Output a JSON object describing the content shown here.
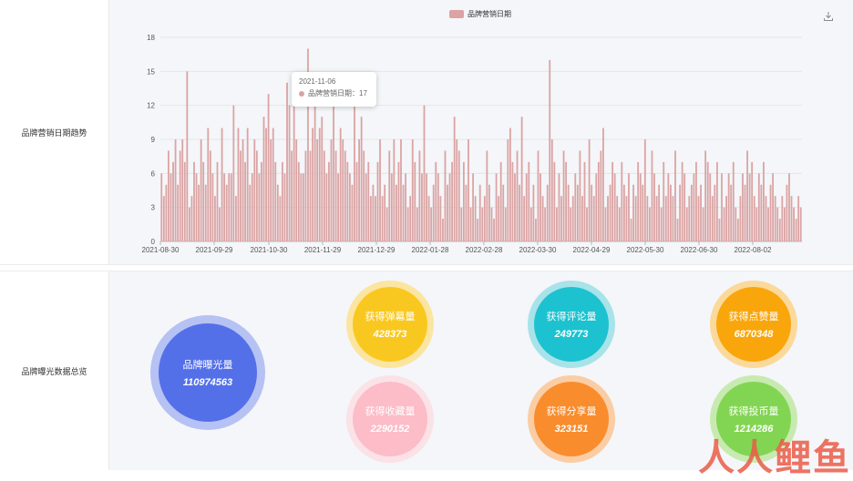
{
  "sections": {
    "trend_label": "品牌营销日期趋势",
    "overview_label": "品牌曝光数据总览"
  },
  "legend": {
    "label": "品牌营销日期",
    "color": "#dba3a3"
  },
  "toolbar": {
    "download_icon": "download-icon"
  },
  "tooltip": {
    "date": "2021-11-06",
    "series": "品牌营销日期：",
    "value": "17"
  },
  "chart_data": {
    "type": "bar",
    "series": [
      {
        "name": "品牌营销日期",
        "values": []
      }
    ],
    "x_ticks": [
      "2021-08-30",
      "2021-09-29",
      "2021-10-30",
      "2021-11-29",
      "2021-12-29",
      "2022-01-28",
      "2022-02-28",
      "2022-03-30",
      "2022-04-29",
      "2022-05-30",
      "2022-06-30",
      "2022-08-02"
    ],
    "y_ticks": [
      0,
      3,
      6,
      9,
      12,
      15,
      18
    ],
    "ylim": [
      0,
      18
    ],
    "values": [
      6,
      4,
      5,
      8,
      6,
      7,
      9,
      5,
      8,
      9,
      7,
      15,
      3,
      4,
      7,
      6,
      5,
      9,
      7,
      5,
      10,
      8,
      6,
      4,
      7,
      3,
      10,
      6,
      5,
      6,
      6,
      12,
      4,
      10,
      8,
      9,
      7,
      10,
      5,
      6,
      9,
      8,
      6,
      7,
      11,
      10,
      13,
      9,
      10,
      7,
      5,
      4,
      7,
      6,
      14,
      12,
      8,
      13,
      9,
      7,
      6,
      6,
      8,
      17,
      8,
      10,
      12,
      9,
      10,
      11,
      8,
      6,
      7,
      9,
      12,
      8,
      6,
      10,
      9,
      8,
      7,
      6,
      5,
      13,
      7,
      9,
      11,
      8,
      6,
      7,
      4,
      5,
      4,
      7,
      9,
      4,
      5,
      3,
      8,
      6,
      9,
      5,
      7,
      9,
      5,
      6,
      3,
      4,
      9,
      7,
      3,
      8,
      6,
      12,
      6,
      4,
      3,
      5,
      7,
      6,
      4,
      2,
      8,
      5,
      6,
      7,
      11,
      9,
      8,
      3,
      7,
      5,
      9,
      3,
      6,
      4,
      2,
      5,
      3,
      4,
      8,
      5,
      3,
      2,
      6,
      4,
      7,
      5,
      3,
      9,
      10,
      7,
      6,
      8,
      5,
      11,
      4,
      6,
      7,
      3,
      5,
      2,
      8,
      6,
      4,
      3,
      5,
      16,
      9,
      7,
      3,
      6,
      4,
      8,
      7,
      5,
      3,
      4,
      6,
      5,
      8,
      4,
      7,
      3,
      9,
      5,
      4,
      6,
      7,
      8,
      10,
      3,
      4,
      5,
      7,
      6,
      4,
      3,
      7,
      5,
      4,
      6,
      2,
      5,
      4,
      7,
      6,
      5,
      9,
      4,
      3,
      8,
      6,
      4,
      5,
      3,
      7,
      4,
      6,
      5,
      4,
      8,
      2,
      5,
      7,
      6,
      3,
      4,
      5,
      6,
      7,
      4,
      5,
      3,
      8,
      7,
      6,
      4,
      5,
      7,
      2,
      6,
      3,
      4,
      6,
      5,
      7,
      3,
      2,
      4,
      6,
      5,
      8,
      6,
      7,
      4,
      3,
      6,
      5,
      7,
      4,
      3,
      5,
      6,
      4,
      3,
      2,
      4,
      3,
      5,
      6,
      4,
      3,
      2,
      4,
      3
    ]
  },
  "metrics": [
    {
      "key": "exposure",
      "label": "品牌曝光量",
      "value": "110974563",
      "color": "#5470e8",
      "ring": "#b6c2f3"
    },
    {
      "key": "danmaku",
      "label": "获得弹幕量",
      "value": "428373",
      "color": "#f9c820",
      "ring": "#fbe5a0"
    },
    {
      "key": "comment",
      "label": "获得评论量",
      "value": "249773",
      "color": "#1cc2d0",
      "ring": "#a8e3e9"
    },
    {
      "key": "like",
      "label": "获得点赞量",
      "value": "6870348",
      "color": "#f9a60c",
      "ring": "#fbd99b"
    },
    {
      "key": "favorite",
      "label": "获得收藏量",
      "value": "2290152",
      "color": "#fcbcc8",
      "ring": "#fbe2e7"
    },
    {
      "key": "share",
      "label": "获得分享量",
      "value": "323151",
      "color": "#f98c2c",
      "ring": "#fbcda4"
    },
    {
      "key": "coin",
      "label": "获得投币量",
      "value": "1214286",
      "color": "#82d552",
      "ring": "#c8eab1"
    }
  ],
  "watermark": {
    "text": "人人鲤鱼"
  }
}
